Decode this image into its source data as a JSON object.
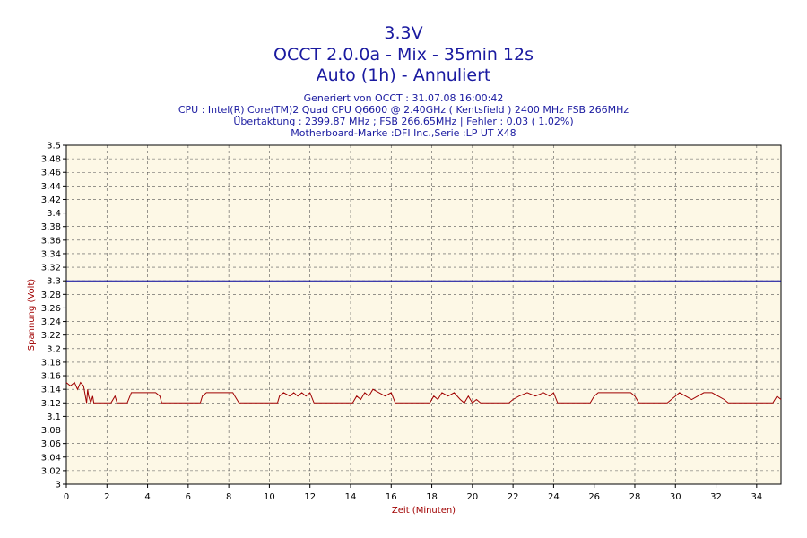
{
  "header": {
    "title_line1": "3.3V",
    "title_line2": "OCCT 2.0.0a - Mix - 35min 12s",
    "title_line3": "Auto (1h) - Annuliert",
    "info_line1": "Generiert von OCCT : 31.07.08 16:00:42",
    "info_line2": "CPU : Intel(R) Core(TM)2 Quad CPU Q6600 @ 2.40GHz ( Kentsfield ) 2400 MHz FSB 266MHz",
    "info_line3": "Übertaktung : 2399.87 MHz ; FSB 266.65MHz | Fehler : 0.03 ( 1.02%)",
    "info_line4": "Motherboard-Marke :DFI Inc.,Serie :LP UT X48"
  },
  "colors": {
    "title": "#1a1aa0",
    "plot_background": "#fdf8e6",
    "grid": "#555555",
    "series_line": "#a00000",
    "reference_line": "#000099",
    "axis_title": "#a00000"
  },
  "chart_data": {
    "type": "line",
    "xlabel": "Zeit (Minuten)",
    "ylabel": "Spannung (Volt)",
    "xlim": [
      0,
      35.2
    ],
    "ylim": [
      3.0,
      3.5
    ],
    "x_ticks": [
      0,
      2,
      4,
      6,
      8,
      10,
      12,
      14,
      16,
      18,
      20,
      22,
      24,
      26,
      28,
      30,
      32,
      34
    ],
    "y_ticks": [
      3,
      3.02,
      3.04,
      3.06,
      3.08,
      3.1,
      3.12,
      3.14,
      3.16,
      3.18,
      3.2,
      3.22,
      3.24,
      3.26,
      3.28,
      3.3,
      3.32,
      3.34,
      3.36,
      3.38,
      3.4,
      3.42,
      3.44,
      3.46,
      3.48,
      3.5
    ],
    "y_tick_labels": [
      "3",
      "3.02",
      "3.04",
      "3.06",
      "3.08",
      "3.1",
      "3.12",
      "3.14",
      "3.16",
      "3.18",
      "3.2",
      "3.22",
      "3.24",
      "3.26",
      "3.28",
      "3.3",
      "3.32",
      "3.34",
      "3.36",
      "3.38",
      "3.4",
      "3.42",
      "3.44",
      "3.46",
      "3.48",
      "3.5"
    ],
    "grid": true,
    "reference_line": {
      "y": 3.3
    },
    "series": [
      {
        "x": [
          0,
          0.2,
          0.4,
          0.55,
          0.7,
          0.85,
          1.0,
          1.05,
          1.1,
          1.2,
          1.3,
          1.35,
          1.5,
          2.2,
          2.4,
          2.5,
          2.65,
          2.8,
          3.0,
          3.2,
          4.4,
          4.6,
          4.7,
          4.9,
          6.6,
          6.7,
          6.9,
          8.2,
          8.3,
          8.5,
          10.4,
          10.5,
          10.7,
          11.0,
          11.2,
          11.4,
          11.6,
          11.8,
          12.0,
          12.2,
          12.4,
          14.1,
          14.3,
          14.5,
          14.7,
          14.9,
          15.1,
          15.4,
          15.7,
          16.0,
          16.2,
          16.4,
          17.9,
          18.1,
          18.3,
          18.5,
          18.8,
          19.1,
          19.4,
          19.6,
          19.8,
          20.0,
          20.2,
          20.4,
          21.8,
          22.0,
          22.3,
          22.7,
          23.1,
          23.5,
          23.8,
          24.0,
          24.2,
          24.4,
          25.8,
          26.0,
          26.2,
          27.8,
          28.0,
          28.2,
          29.6,
          29.8,
          30.0,
          30.2,
          30.5,
          30.8,
          31.1,
          31.4,
          31.8,
          32.1,
          32.4,
          32.6,
          32.8,
          34.8,
          34.9,
          35.0,
          35.2
        ],
        "y": [
          3.15,
          3.145,
          3.15,
          3.14,
          3.15,
          3.145,
          3.12,
          3.14,
          3.13,
          3.12,
          3.13,
          3.12,
          3.12,
          3.12,
          3.13,
          3.12,
          3.12,
          3.12,
          3.12,
          3.135,
          3.135,
          3.13,
          3.12,
          3.12,
          3.12,
          3.13,
          3.135,
          3.135,
          3.13,
          3.12,
          3.12,
          3.13,
          3.135,
          3.13,
          3.135,
          3.13,
          3.135,
          3.13,
          3.135,
          3.12,
          3.12,
          3.12,
          3.13,
          3.125,
          3.135,
          3.13,
          3.14,
          3.135,
          3.13,
          3.135,
          3.12,
          3.12,
          3.12,
          3.13,
          3.125,
          3.135,
          3.13,
          3.135,
          3.125,
          3.12,
          3.13,
          3.12,
          3.125,
          3.12,
          3.12,
          3.125,
          3.13,
          3.135,
          3.13,
          3.135,
          3.13,
          3.135,
          3.12,
          3.12,
          3.12,
          3.13,
          3.135,
          3.135,
          3.13,
          3.12,
          3.12,
          3.125,
          3.13,
          3.135,
          3.13,
          3.125,
          3.13,
          3.135,
          3.135,
          3.13,
          3.125,
          3.12,
          3.12,
          3.12,
          3.125,
          3.13,
          3.125
        ]
      }
    ]
  }
}
